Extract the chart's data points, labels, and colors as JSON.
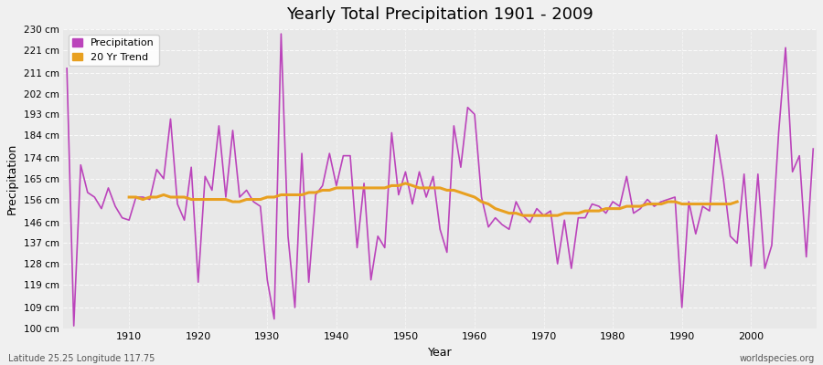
{
  "title": "Yearly Total Precipitation 1901 - 2009",
  "xlabel": "Year",
  "ylabel": "Precipitation",
  "xlim": [
    1901,
    2009
  ],
  "ylim": [
    100,
    230
  ],
  "yticks": [
    100,
    109,
    119,
    128,
    137,
    146,
    156,
    165,
    174,
    184,
    193,
    202,
    211,
    221,
    230
  ],
  "ytick_labels": [
    "100 cm",
    "109 cm",
    "119 cm",
    "128 cm",
    "137 cm",
    "146 cm",
    "156 cm",
    "165 cm",
    "174 cm",
    "184 cm",
    "193 cm",
    "202 cm",
    "211 cm",
    "221 cm",
    "230 cm"
  ],
  "xticks": [
    1910,
    1920,
    1930,
    1940,
    1950,
    1960,
    1970,
    1980,
    1990,
    2000
  ],
  "precipitation_color": "#bb44bb",
  "trend_color": "#e8a020",
  "background_color": "#f0f0f0",
  "plot_bg_color": "#e8e8e8",
  "legend_labels": [
    "Precipitation",
    "20 Yr Trend"
  ],
  "footer_left": "Latitude 25.25 Longitude 117.75",
  "footer_right": "worldspecies.org",
  "years": [
    1901,
    1902,
    1903,
    1904,
    1905,
    1906,
    1907,
    1908,
    1909,
    1910,
    1911,
    1912,
    1913,
    1914,
    1915,
    1916,
    1917,
    1918,
    1919,
    1920,
    1921,
    1922,
    1923,
    1924,
    1925,
    1926,
    1927,
    1928,
    1929,
    1930,
    1931,
    1932,
    1933,
    1934,
    1935,
    1936,
    1937,
    1938,
    1939,
    1940,
    1941,
    1942,
    1943,
    1944,
    1945,
    1946,
    1947,
    1948,
    1949,
    1950,
    1951,
    1952,
    1953,
    1954,
    1955,
    1956,
    1957,
    1958,
    1959,
    1960,
    1961,
    1962,
    1963,
    1964,
    1965,
    1966,
    1967,
    1968,
    1969,
    1970,
    1971,
    1972,
    1973,
    1974,
    1975,
    1976,
    1977,
    1978,
    1979,
    1980,
    1981,
    1982,
    1983,
    1984,
    1985,
    1986,
    1987,
    1988,
    1989,
    1990,
    1991,
    1992,
    1993,
    1994,
    1995,
    1996,
    1997,
    1998,
    1999,
    2000,
    2001,
    2002,
    2003,
    2004,
    2005,
    2006,
    2007,
    2008,
    2009
  ],
  "precipitation": [
    213,
    101,
    171,
    159,
    157,
    152,
    161,
    153,
    148,
    147,
    157,
    157,
    156,
    169,
    165,
    191,
    154,
    147,
    170,
    120,
    166,
    160,
    188,
    157,
    186,
    157,
    160,
    155,
    153,
    121,
    104,
    228,
    140,
    109,
    176,
    120,
    158,
    162,
    176,
    162,
    175,
    175,
    135,
    163,
    121,
    140,
    135,
    185,
    158,
    168,
    154,
    168,
    157,
    166,
    143,
    133,
    188,
    170,
    196,
    193,
    157,
    144,
    148,
    145,
    143,
    155,
    149,
    146,
    152,
    149,
    151,
    128,
    147,
    126,
    148,
    148,
    154,
    153,
    150,
    155,
    153,
    166,
    150,
    152,
    156,
    153,
    155,
    156,
    157,
    109,
    155,
    141,
    153,
    151,
    184,
    165,
    140,
    137,
    167,
    127,
    167,
    126,
    136,
    185,
    222,
    168,
    175,
    131,
    178
  ],
  "trend": [
    null,
    null,
    null,
    null,
    null,
    null,
    null,
    null,
    null,
    157,
    157,
    156,
    157,
    157,
    158,
    157,
    157,
    157,
    156,
    156,
    156,
    156,
    156,
    156,
    155,
    155,
    156,
    156,
    156,
    157,
    157,
    158,
    158,
    158,
    158,
    159,
    159,
    160,
    160,
    161,
    161,
    161,
    161,
    161,
    161,
    161,
    161,
    162,
    162,
    163,
    162,
    161,
    161,
    161,
    161,
    160,
    160,
    159,
    158,
    157,
    155,
    154,
    152,
    151,
    150,
    150,
    149,
    149,
    149,
    149,
    149,
    149,
    150,
    150,
    150,
    151,
    151,
    151,
    152,
    152,
    152,
    153,
    153,
    153,
    154,
    154,
    154,
    155,
    155,
    154,
    154,
    154,
    154,
    154,
    154,
    154,
    154,
    155,
    null,
    null,
    null,
    null,
    null,
    null,
    null,
    null,
    null,
    null,
    null
  ]
}
